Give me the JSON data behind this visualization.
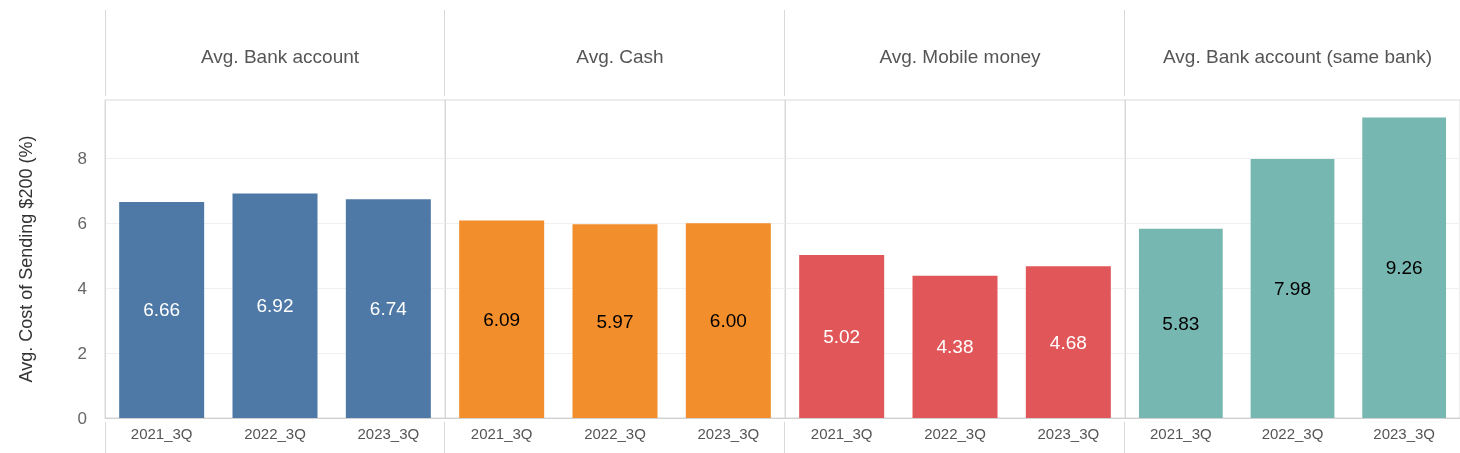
{
  "chart_data": [
    {
      "type": "bar",
      "title": "Avg. Bank account",
      "ylabel": "Avg. Cost of Sending $200 (%)",
      "categories": [
        "2021_3Q",
        "2022_3Q",
        "2023_3Q"
      ],
      "values": [
        6.66,
        6.92,
        6.74
      ],
      "value_labels": [
        "6.66",
        "6.92",
        "6.74"
      ],
      "data_labels": true,
      "color": "#4e79a7",
      "ylim": [
        0,
        9.8
      ],
      "yticks": [
        0,
        2,
        4,
        6,
        8
      ],
      "grid": "y"
    },
    {
      "type": "bar",
      "title": "Avg. Cash",
      "categories": [
        "2021_3Q",
        "2022_3Q",
        "2023_3Q"
      ],
      "values": [
        6.09,
        5.97,
        6.0
      ],
      "value_labels": [
        "6.09",
        "5.97",
        "6.00"
      ],
      "data_labels": true,
      "color": "#f28e2b",
      "ylim": [
        0,
        9.8
      ],
      "yticks": [
        0,
        2,
        4,
        6,
        8
      ],
      "grid": "y",
      "tick_labels": "x"
    },
    {
      "type": "bar",
      "title": "Avg. Mobile money",
      "categories": [
        "2021_3Q",
        "2022_3Q",
        "2023_3Q"
      ],
      "values": [
        5.02,
        4.38,
        4.68
      ],
      "value_labels": [
        "5.02",
        "4.38",
        "4.68"
      ],
      "data_labels": true,
      "color": "#e15759",
      "ylim": [
        0,
        9.8
      ],
      "yticks": [
        0,
        2,
        4,
        6,
        8
      ],
      "grid": "y",
      "tick_labels": "x"
    },
    {
      "type": "bar",
      "title": "Avg. Bank account (same bank)",
      "categories": [
        "2021_3Q",
        "2022_3Q",
        "2023_3Q"
      ],
      "values": [
        5.83,
        7.98,
        9.26
      ],
      "value_labels": [
        "5.83",
        "7.98",
        "9.26"
      ],
      "data_labels": true,
      "color": "#76b7b2",
      "ylim": [
        0,
        9.8
      ],
      "yticks": [
        0,
        2,
        4,
        6,
        8
      ],
      "grid": "y",
      "tick_labels": "x"
    }
  ]
}
